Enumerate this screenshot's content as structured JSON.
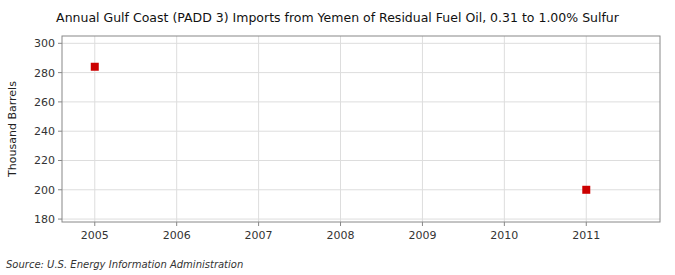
{
  "chart_data": {
    "type": "scatter",
    "title": "Annual Gulf Coast (PADD 3) Imports from Yemen of Residual Fuel Oil, 0.31 to 1.00% Sulfur",
    "ylabel": "Thousand Barrels",
    "source": "Source: U.S. Energy Information Administration",
    "x": [
      2005,
      2011
    ],
    "values": [
      284,
      200
    ],
    "color": "#cc0000",
    "marker": "square",
    "xlim": [
      2004.6,
      2011.9
    ],
    "ylim": [
      178,
      305
    ],
    "xticks": [
      2005,
      2006,
      2007,
      2008,
      2009,
      2010,
      2011
    ],
    "yticks": [
      180,
      200,
      220,
      240,
      260,
      280,
      300
    ],
    "grid": true
  }
}
